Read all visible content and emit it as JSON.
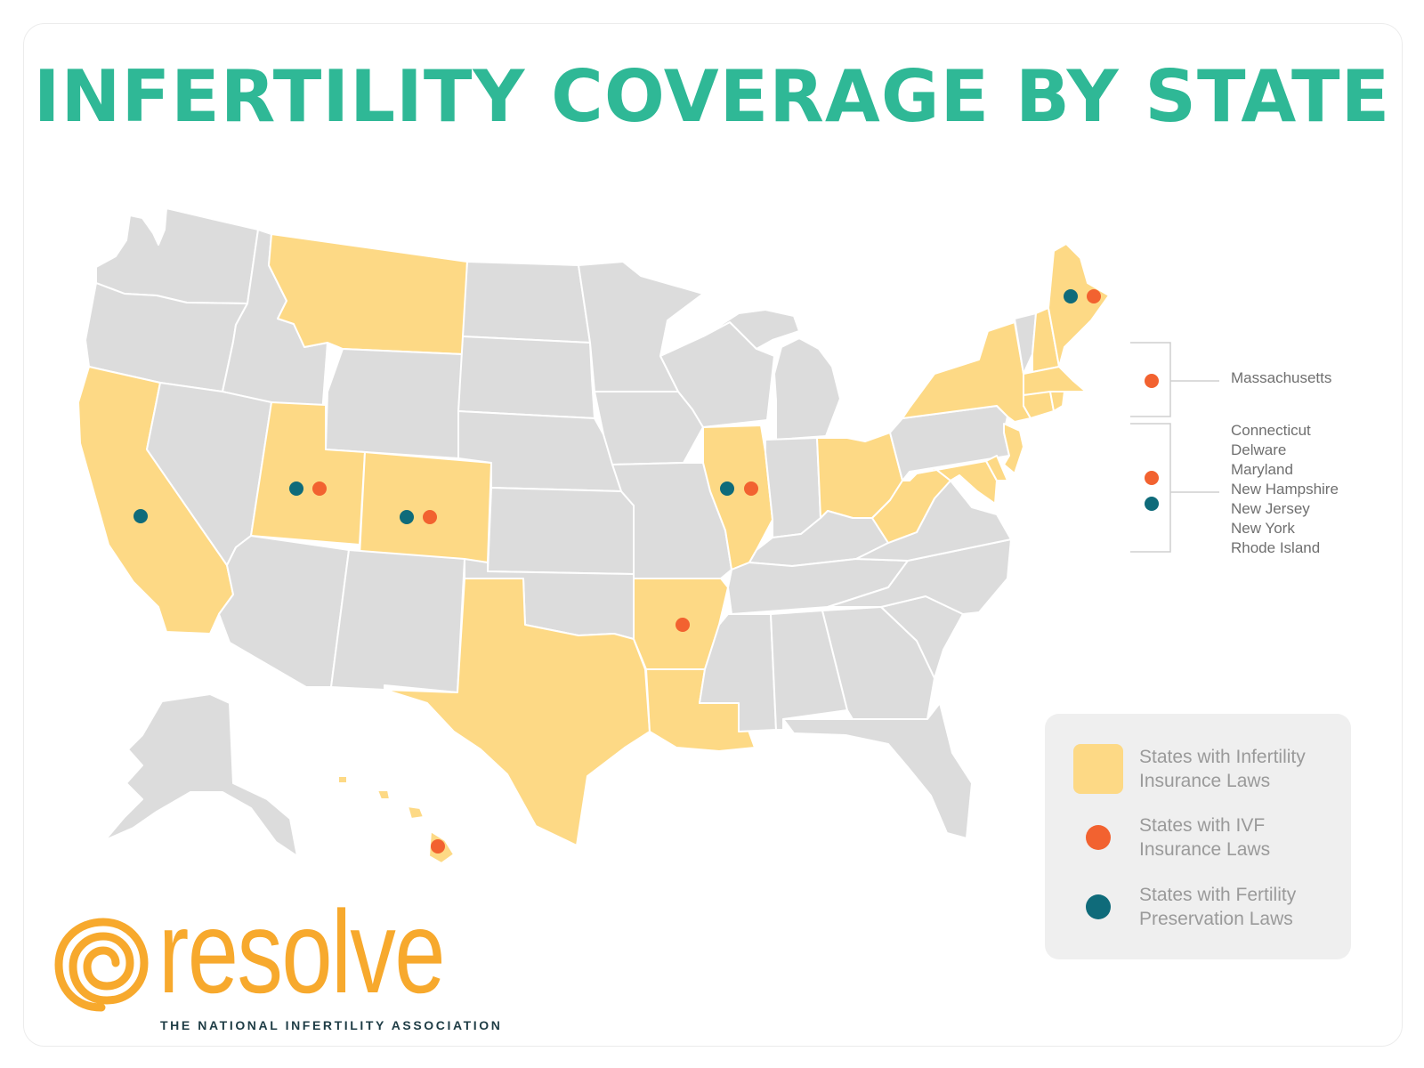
{
  "title": "INFERTILITY COVERAGE BY STATE",
  "colors": {
    "title": "#2fb896",
    "base_state": "#dcdcdc",
    "infertility_law_state": "#fdd985",
    "ivf_dot": "#f26230",
    "preservation_dot": "#0f6b7a",
    "legend_bg": "#efefef"
  },
  "callouts": {
    "massachusetts": {
      "states": [
        "Massachusetts"
      ],
      "dots": [
        "ivf"
      ]
    },
    "group": {
      "states": [
        "Connecticut",
        "Delware",
        "Maryland",
        "New Hampshire",
        "New Jersey",
        "New York",
        "Rhode Island"
      ],
      "dots": [
        "ivf",
        "preservation"
      ]
    }
  },
  "legend": {
    "items": [
      {
        "kind": "swatch",
        "color_key": "infertility_law_state",
        "label": "States with Infertility Insurance Laws"
      },
      {
        "kind": "dot",
        "color_key": "ivf_dot",
        "label": "States with IVF Insurance Laws"
      },
      {
        "kind": "dot",
        "color_key": "preservation_dot",
        "label": "States with Fertility Preservation Laws"
      }
    ]
  },
  "logo": {
    "wordmark": "resolve",
    "tagline": "THE NATIONAL INFERTILITY ASSOCIATION"
  },
  "map_data": {
    "states_with_infertility_insurance_laws": [
      "Montana",
      "California",
      "Utah",
      "Colorado",
      "Texas",
      "Arkansas",
      "Louisiana",
      "Illinois",
      "Ohio",
      "West Virginia",
      "New York",
      "Maine",
      "New Hampshire",
      "Massachusetts",
      "Connecticut",
      "Rhode Island",
      "New Jersey",
      "Delaware",
      "Maryland",
      "Hawaii"
    ],
    "states_with_ivf_insurance_laws": [
      "Utah",
      "Colorado",
      "Illinois",
      "Arkansas",
      "Maine",
      "Hawaii"
    ],
    "states_with_fertility_preservation_laws": [
      "California",
      "Utah",
      "Colorado",
      "Illinois",
      "Maine"
    ]
  }
}
